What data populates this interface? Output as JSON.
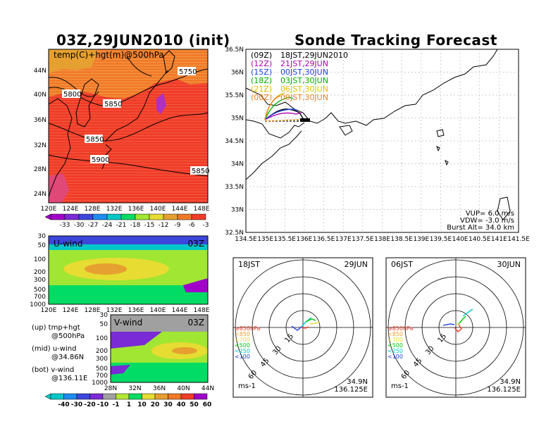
{
  "left_title": "03Z,29JUN2010 (init)",
  "right_title": "Sonde Tracking Forecast",
  "map500": {
    "label": "temp(C)+hgt(m)@500hPa",
    "lat_ticks": [
      "44N",
      "40N",
      "36N",
      "32N",
      "28N",
      "24N"
    ],
    "lon_ticks": [
      "120E",
      "124E",
      "128E",
      "132E",
      "136E",
      "140E",
      "144E",
      "148E"
    ],
    "contours": [
      "5750",
      "5800",
      "5850",
      "5850",
      "5900",
      "5850"
    ],
    "colors": [
      "#a000c8",
      "#7a2bd6",
      "#3c46dc",
      "#1e8cf0",
      "#00c8c8",
      "#00dc64",
      "#a0e632",
      "#e6dc32",
      "#e6a030",
      "#f07a28",
      "#f03c28"
    ],
    "colorbar_labels": [
      "-33",
      "-30",
      "-27",
      "-24",
      "-21",
      "-18",
      "-15",
      "-12",
      "-9",
      "-6",
      "-3"
    ]
  },
  "uwind": {
    "label": "U-wind",
    "time": "03Z",
    "p_ticks": [
      "30",
      "50",
      "100",
      "200",
      "300",
      "500",
      "700",
      "1000"
    ],
    "lon_ticks": [
      "120E",
      "124E",
      "128E",
      "132E",
      "136E",
      "140E",
      "144E",
      "148E"
    ]
  },
  "vwind": {
    "label": "V-wind",
    "time": "03Z",
    "p_ticks": [
      "30",
      "50",
      "100",
      "200",
      "300",
      "500",
      "700",
      "1000"
    ],
    "lat_ticks": [
      "28N",
      "32N",
      "36N",
      "40N",
      "44N"
    ]
  },
  "wind_colorbar": {
    "labels": [
      "-40",
      "-30",
      "-20",
      "-10",
      "-1",
      "1",
      "10",
      "20",
      "30",
      "40",
      "50",
      "60"
    ],
    "colors": [
      "#00c8c8",
      "#1e8cf0",
      "#3c46dc",
      "#7a2bd6",
      "#a0a0a0",
      "#b4e632",
      "#00dc64",
      "#e6dc32",
      "#e6a030",
      "#f07a28",
      "#f03c28",
      "#a000c8"
    ]
  },
  "notes": [
    {
      "a": "(up) tmp+hgt",
      "b": "@500hPa"
    },
    {
      "a": "(mid) u-wind",
      "b": "@34.86N"
    },
    {
      "a": "(bot) v-wind",
      "b": "@136.11E"
    }
  ],
  "track_map": {
    "lat_ticks": [
      "36.5N",
      "36N",
      "35.5N",
      "35N",
      "34.5N",
      "34N",
      "33.5N",
      "33N",
      "32.5N"
    ],
    "lon_ticks": [
      "134.5E",
      "135E",
      "135.5E",
      "136E",
      "136.5E",
      "137E",
      "137.5E",
      "138E",
      "138.5E",
      "139E",
      "139.5E",
      "140E",
      "140.5E",
      "141E",
      "141.5E"
    ],
    "legend": [
      {
        "run": "(09Z)",
        "local": "18JST,29JUN2010",
        "color": "#000000"
      },
      {
        "run": "(12Z)",
        "local": "21JST,29JUN",
        "color": "#b000b0"
      },
      {
        "run": "(15Z)",
        "local": "00JST,30JUN",
        "color": "#2040e0"
      },
      {
        "run": "(18Z)",
        "local": "03JST,30JUN",
        "color": "#00b000"
      },
      {
        "run": "(21Z)",
        "local": "06JST,30JUN",
        "color": "#e0c000"
      },
      {
        "run": "(00Z)",
        "local": "09JST,30JUN",
        "color": "#f08020"
      }
    ],
    "vup": "VUP= 6.0 m/s",
    "vdw": "VDW= -3.0 m/s",
    "burst": "Burst Alt= 34.0 km"
  },
  "hodo_left": {
    "left_label": "18JST",
    "right_label": "29JUN",
    "rings": [
      "15",
      "30",
      "45",
      "60"
    ],
    "unit": "ms-1",
    "lat": "34.9N",
    "lon": "136.125E"
  },
  "hodo_right": {
    "left_label": "06JST",
    "right_label": "30JUN",
    "rings": [
      "15",
      "30",
      "45",
      "60"
    ],
    "unit": "ms-1",
    "lat": "34.9N",
    "lon": "136.125E"
  },
  "hodo_legend": [
    {
      "label": "≥850hPa",
      "color": "#f03c28"
    },
    {
      "label": "<850",
      "color": "#f0a030"
    },
    {
      "label": "<700",
      "color": "#e6dc32"
    },
    {
      "label": "<500",
      "color": "#00c800"
    },
    {
      "label": "<250",
      "color": "#00c8c8"
    },
    {
      "label": "<100",
      "color": "#2040e0"
    }
  ]
}
